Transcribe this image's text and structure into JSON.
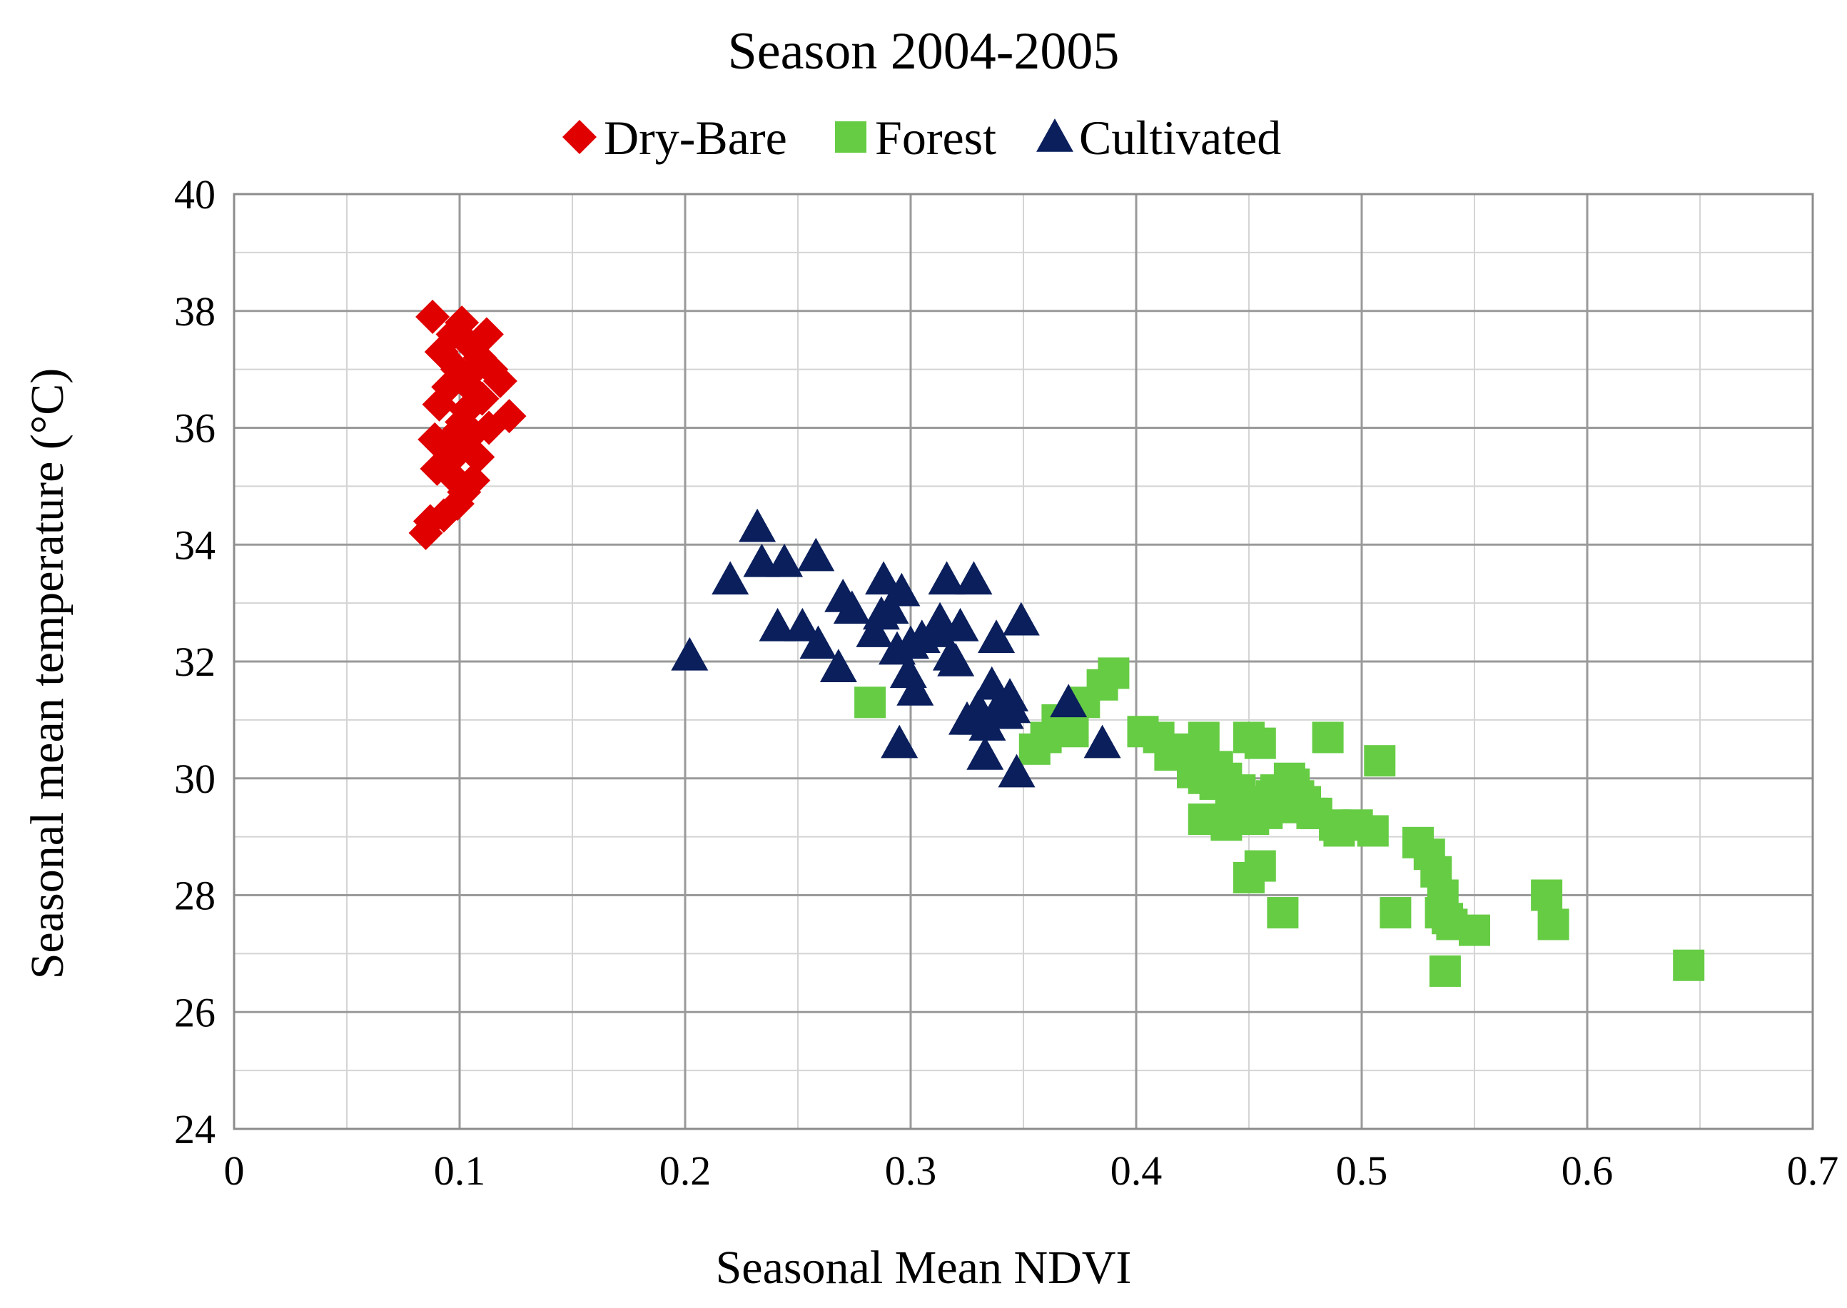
{
  "chart_data": {
    "type": "scatter",
    "title": "Season 2004-2005",
    "xlabel": "Seasonal Mean NDVI",
    "ylabel": "Seasonal mean temperature (°C)",
    "xlim": [
      0,
      0.7
    ],
    "ylim": [
      24,
      40
    ],
    "grid": true,
    "legend_position": "top",
    "xticks": [
      0,
      0.1,
      0.2,
      0.3,
      0.4,
      0.5,
      0.6,
      0.7
    ],
    "xtick_labels": [
      "0",
      "0.1",
      "0.2",
      "0.3",
      "0.4",
      "0.5",
      "0.6",
      "0.7"
    ],
    "yticks": [
      24,
      26,
      28,
      30,
      32,
      34,
      36,
      38,
      40
    ],
    "ytick_labels": [
      "24",
      "26",
      "28",
      "30",
      "32",
      "34",
      "36",
      "38",
      "40"
    ],
    "series": [
      {
        "name": "Dry-Bare",
        "marker": "diamond",
        "color": "#e00000",
        "x": [
          0.088,
          0.101,
          0.112,
          0.097,
          0.105,
          0.109,
          0.092,
          0.114,
          0.099,
          0.104,
          0.118,
          0.095,
          0.107,
          0.11,
          0.091,
          0.103,
          0.122,
          0.089,
          0.098,
          0.106,
          0.094,
          0.1,
          0.108,
          0.09,
          0.096,
          0.102,
          0.087,
          0.099,
          0.085,
          0.093,
          0.106,
          0.113,
          0.101
        ],
        "y": [
          37.9,
          37.8,
          37.6,
          37.6,
          37.4,
          37.2,
          37.3,
          37.0,
          37.0,
          36.9,
          36.8,
          36.7,
          36.6,
          36.5,
          36.4,
          36.3,
          36.2,
          35.8,
          35.9,
          35.9,
          35.7,
          35.6,
          35.5,
          35.3,
          35.2,
          34.9,
          34.4,
          34.7,
          34.2,
          34.5,
          35.1,
          36.0,
          36.1
        ]
      },
      {
        "name": "Forest",
        "marker": "square",
        "color": "#66cc44",
        "x": [
          0.282,
          0.39,
          0.385,
          0.377,
          0.365,
          0.372,
          0.355,
          0.36,
          0.403,
          0.41,
          0.418,
          0.425,
          0.43,
          0.436,
          0.44,
          0.446,
          0.45,
          0.455,
          0.46,
          0.465,
          0.47,
          0.475,
          0.48,
          0.485,
          0.49,
          0.498,
          0.505,
          0.508,
          0.44,
          0.445,
          0.43,
          0.45,
          0.455,
          0.462,
          0.468,
          0.448,
          0.458,
          0.525,
          0.53,
          0.533,
          0.536,
          0.535,
          0.538,
          0.54,
          0.515,
          0.465,
          0.55,
          0.582,
          0.585,
          0.645,
          0.537,
          0.415,
          0.425,
          0.435,
          0.442,
          0.452,
          0.472,
          0.478,
          0.488,
          0.43
        ],
        "y": [
          31.3,
          31.8,
          31.6,
          31.3,
          31.0,
          30.8,
          30.5,
          30.7,
          30.8,
          30.7,
          30.5,
          30.3,
          30.7,
          30.2,
          30.0,
          29.8,
          30.7,
          30.6,
          29.7,
          29.5,
          29.9,
          29.6,
          29.4,
          30.7,
          29.1,
          29.2,
          29.1,
          30.3,
          29.2,
          29.5,
          29.3,
          28.3,
          28.5,
          29.8,
          30.0,
          29.6,
          29.4,
          28.9,
          28.7,
          28.4,
          28.0,
          27.7,
          27.6,
          27.5,
          27.7,
          27.7,
          27.4,
          28.0,
          27.5,
          26.8,
          26.7,
          30.4,
          30.1,
          29.9,
          29.7,
          29.3,
          29.7,
          29.4,
          29.2,
          30.0
        ]
      },
      {
        "name": "Cultivated",
        "marker": "triangle",
        "color": "#0a1f5c",
        "x": [
          0.202,
          0.232,
          0.22,
          0.234,
          0.244,
          0.258,
          0.241,
          0.252,
          0.259,
          0.27,
          0.268,
          0.274,
          0.284,
          0.288,
          0.291,
          0.296,
          0.287,
          0.294,
          0.299,
          0.302,
          0.305,
          0.311,
          0.313,
          0.316,
          0.32,
          0.322,
          0.328,
          0.33,
          0.334,
          0.336,
          0.338,
          0.342,
          0.344,
          0.347,
          0.349,
          0.333,
          0.329,
          0.345,
          0.295,
          0.37,
          0.385,
          0.3,
          0.318,
          0.325,
          0.34
        ],
        "y": [
          32.1,
          34.3,
          33.4,
          33.7,
          33.7,
          33.8,
          32.6,
          32.6,
          32.3,
          33.1,
          31.9,
          32.9,
          32.5,
          33.4,
          32.9,
          33.2,
          32.8,
          32.2,
          31.8,
          31.5,
          32.4,
          32.5,
          32.7,
          33.4,
          32.0,
          32.6,
          33.4,
          31.2,
          30.9,
          31.6,
          32.4,
          31.1,
          31.4,
          30.1,
          32.7,
          30.4,
          31.0,
          31.2,
          30.6,
          31.3,
          30.6,
          32.3,
          32.1,
          31.0,
          31.3
        ]
      }
    ]
  }
}
